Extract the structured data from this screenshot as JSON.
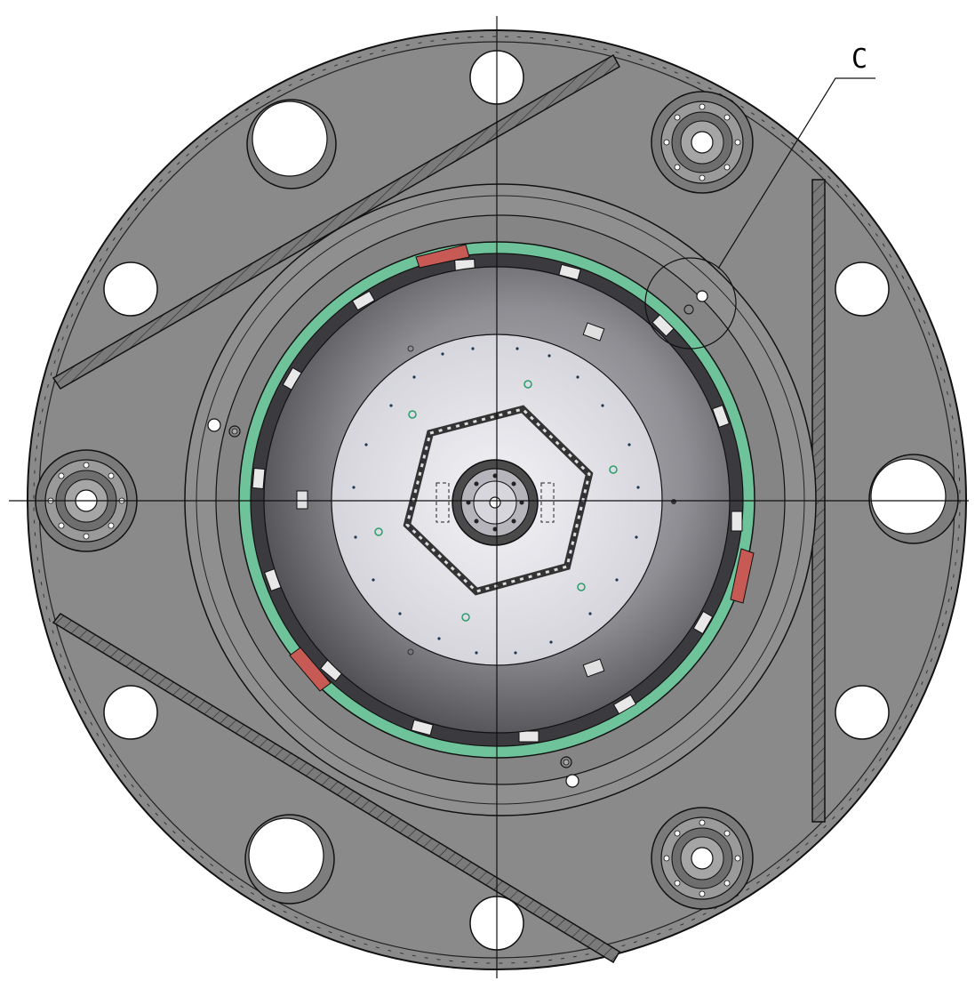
{
  "drawing": {
    "callout_label": "C",
    "colors": {
      "plate": "#8c8c8c",
      "plate_dark": "#6b6b6b",
      "outline": "#1a1a1a",
      "liner_green": "#6fc39a",
      "segment_red": "#c85a55",
      "inner_dark": "#555555",
      "inner_light": "#dcdce4",
      "hole": "#ffffff"
    }
  }
}
